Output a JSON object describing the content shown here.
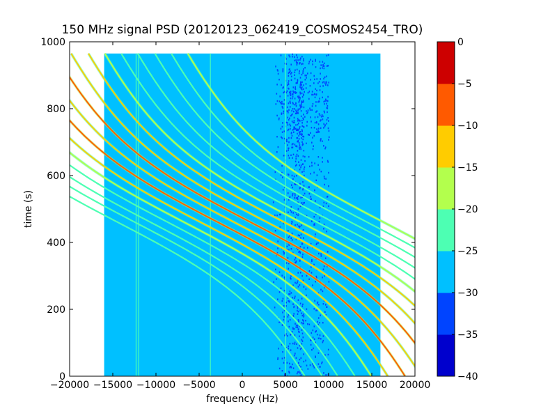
{
  "chart_data": {
    "type": "heatmap",
    "title": "150 MHz signal PSD (20120123_062419_COSMOS2454_TRO)",
    "xlabel": "frequency (Hz)",
    "ylabel": "time (s)",
    "xlim": [
      -20000,
      20000
    ],
    "ylim": [
      0,
      1000
    ],
    "x_ticks": [
      -20000,
      -15000,
      -10000,
      -5000,
      0,
      5000,
      10000,
      15000,
      20000
    ],
    "y_ticks": [
      0,
      200,
      400,
      600,
      800,
      1000
    ],
    "x_tick_labels": [
      "−20000",
      "−15000",
      "−10000",
      "−5000",
      "0",
      "5000",
      "10000",
      "15000",
      "20000"
    ],
    "y_tick_labels": [
      "0",
      "200",
      "400",
      "600",
      "800",
      "1000"
    ],
    "data_extent": {
      "x": [
        -16000,
        16000
      ],
      "y": [
        0,
        965
      ]
    },
    "background_level": -27.5,
    "noisy_band": {
      "x": [
        3500,
        10000
      ],
      "level": -32.5
    },
    "vertical_lines": [
      {
        "x": -12300,
        "level": -22.5
      },
      {
        "x": -12000,
        "level": -22.5
      },
      {
        "x": -3700,
        "level": -25
      },
      {
        "x": 5000,
        "level": -25
      }
    ],
    "traces": [
      {
        "offset": -14400,
        "level": -22.5
      },
      {
        "offset": -12400,
        "level": -22.5
      },
      {
        "offset": -10600,
        "level": -22.5
      },
      {
        "offset": -8600,
        "level": -22.5
      },
      {
        "offset": -6700,
        "level": -17.5
      },
      {
        "offset": -4800,
        "level": -12.5
      },
      {
        "offset": -2800,
        "level": -7.5
      },
      {
        "offset": -900,
        "level": -12.5
      },
      {
        "offset": 1000,
        "level": -7.5
      },
      {
        "offset": 2900,
        "level": -12.5
      },
      {
        "offset": 4900,
        "level": -12.5
      },
      {
        "offset": 6800,
        "level": -17.5
      },
      {
        "offset": 8700,
        "level": -22.5
      },
      {
        "offset": 10600,
        "level": -22.5
      },
      {
        "offset": 12600,
        "level": -22.5
      },
      {
        "offset": 14500,
        "level": -22.5
      },
      {
        "offset": 16400,
        "level": -17.5
      }
    ],
    "trace_shape": {
      "center_time": 460,
      "slope_hz_per_s": -20,
      "curvature": 13000,
      "time_scale": 240
    },
    "colorbar": {
      "levels": [
        -40,
        -35,
        -30,
        -25,
        -20,
        -15,
        -10,
        -5,
        0
      ],
      "tick_labels": [
        "−40",
        "−35",
        "−30",
        "−25",
        "−20",
        "−15",
        "−10",
        "−5",
        "0"
      ],
      "colors": [
        "#0000cd",
        "#0044ff",
        "#00c0ff",
        "#4dffb3",
        "#b3ff4d",
        "#ffcc00",
        "#ff5a00",
        "#cd0000"
      ]
    }
  }
}
